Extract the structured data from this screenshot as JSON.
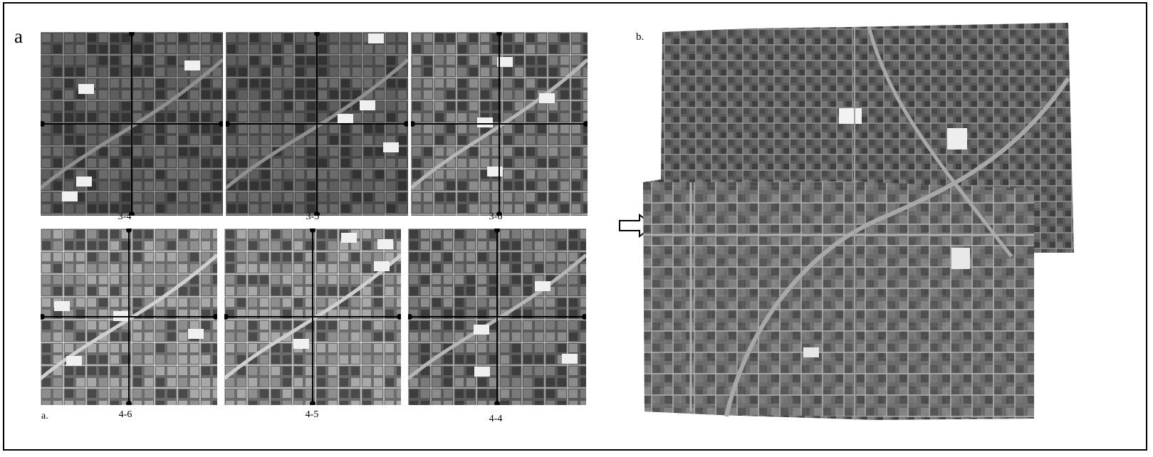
{
  "panel_a": {
    "letter": "a",
    "footer_letter": "a.",
    "tiles": [
      {
        "id": "3-4",
        "tone": "dark"
      },
      {
        "id": "3-5",
        "tone": "dark"
      },
      {
        "id": "3-6",
        "tone": "mid"
      },
      {
        "id": "4-6",
        "tone": "light"
      },
      {
        "id": "4-5",
        "tone": "light"
      },
      {
        "id": "4-4",
        "tone": "mid"
      }
    ]
  },
  "panel_b": {
    "letter": "b."
  },
  "arrow_icon": "right-arrow-outline-icon",
  "colors": {
    "frame": "#000000",
    "background": "#ffffff"
  }
}
